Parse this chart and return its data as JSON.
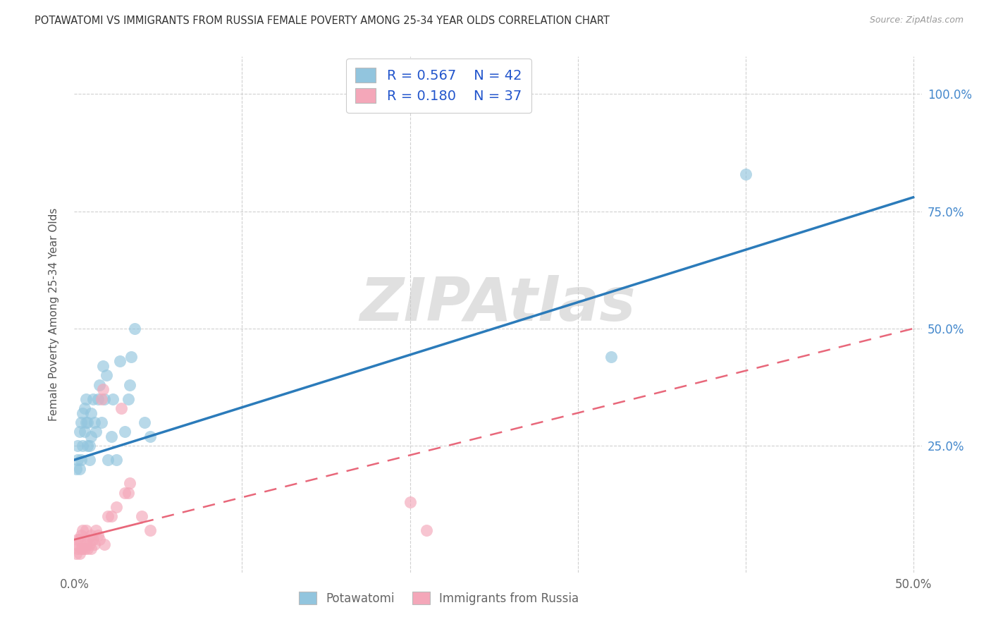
{
  "title": "POTAWATOMI VS IMMIGRANTS FROM RUSSIA FEMALE POVERTY AMONG 25-34 YEAR OLDS CORRELATION CHART",
  "source": "Source: ZipAtlas.com",
  "ylabel": "Female Poverty Among 25-34 Year Olds",
  "xlim": [
    0.0,
    0.505
  ],
  "ylim": [
    -0.02,
    1.08
  ],
  "blue_R": 0.567,
  "blue_N": 42,
  "pink_R": 0.18,
  "pink_N": 37,
  "blue_color": "#92c5de",
  "pink_color": "#f4a7b9",
  "blue_line_color": "#2b7bba",
  "pink_line_color": "#e8677a",
  "legend_label_blue": "Potawatomi",
  "legend_label_pink": "Immigrants from Russia",
  "watermark": "ZIPAtlas",
  "background_color": "#ffffff",
  "grid_color": "#d0d0d0",
  "blue_x": [
    0.001,
    0.002,
    0.002,
    0.003,
    0.003,
    0.004,
    0.004,
    0.005,
    0.005,
    0.006,
    0.006,
    0.007,
    0.007,
    0.008,
    0.008,
    0.009,
    0.009,
    0.01,
    0.01,
    0.011,
    0.012,
    0.013,
    0.014,
    0.015,
    0.016,
    0.017,
    0.018,
    0.019,
    0.02,
    0.022,
    0.023,
    0.025,
    0.027,
    0.03,
    0.032,
    0.033,
    0.034,
    0.036,
    0.042,
    0.045,
    0.32,
    0.4
  ],
  "blue_y": [
    0.2,
    0.22,
    0.25,
    0.2,
    0.28,
    0.22,
    0.3,
    0.25,
    0.32,
    0.28,
    0.33,
    0.3,
    0.35,
    0.25,
    0.3,
    0.22,
    0.25,
    0.27,
    0.32,
    0.35,
    0.3,
    0.28,
    0.35,
    0.38,
    0.3,
    0.42,
    0.35,
    0.4,
    0.22,
    0.27,
    0.35,
    0.22,
    0.43,
    0.28,
    0.35,
    0.38,
    0.44,
    0.5,
    0.3,
    0.27,
    0.44,
    0.83
  ],
  "pink_x": [
    0.001,
    0.001,
    0.002,
    0.002,
    0.003,
    0.003,
    0.004,
    0.004,
    0.005,
    0.005,
    0.006,
    0.007,
    0.007,
    0.008,
    0.008,
    0.009,
    0.01,
    0.01,
    0.011,
    0.012,
    0.013,
    0.014,
    0.015,
    0.016,
    0.017,
    0.018,
    0.02,
    0.022,
    0.025,
    0.028,
    0.03,
    0.032,
    0.033,
    0.04,
    0.045,
    0.2,
    0.21
  ],
  "pink_y": [
    0.02,
    0.04,
    0.03,
    0.05,
    0.02,
    0.05,
    0.03,
    0.06,
    0.03,
    0.07,
    0.03,
    0.04,
    0.07,
    0.03,
    0.05,
    0.04,
    0.03,
    0.06,
    0.05,
    0.04,
    0.07,
    0.06,
    0.05,
    0.35,
    0.37,
    0.04,
    0.1,
    0.1,
    0.12,
    0.33,
    0.15,
    0.15,
    0.17,
    0.1,
    0.07,
    0.13,
    0.07
  ],
  "blue_line_x0": 0.0,
  "blue_line_y0": 0.22,
  "blue_line_x1": 0.5,
  "blue_line_y1": 0.78,
  "pink_line_x0": 0.0,
  "pink_line_y0": 0.05,
  "pink_line_x1": 0.5,
  "pink_line_y1": 0.5
}
